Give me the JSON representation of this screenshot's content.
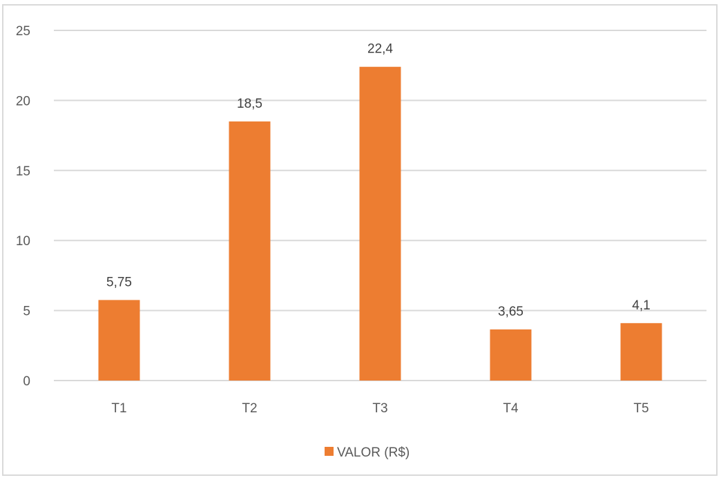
{
  "chart_data": {
    "type": "bar",
    "categories": [
      "T1",
      "T2",
      "T3",
      "T4",
      "T5"
    ],
    "series": [
      {
        "name": "VALOR (R$)",
        "values": [
          5.75,
          18.5,
          22.4,
          3.65,
          4.1
        ],
        "labels": [
          "5,75",
          "18,5",
          "22,4",
          "3,65",
          "4,1"
        ],
        "color": "#ed7d31"
      }
    ],
    "title": "",
    "xlabel": "",
    "ylabel": "",
    "ylim": [
      0,
      25
    ],
    "yticks": [
      0,
      5,
      10,
      15,
      20,
      25
    ],
    "grid": true,
    "gridline_color": "#d9d9d9",
    "legend_position": "bottom"
  }
}
